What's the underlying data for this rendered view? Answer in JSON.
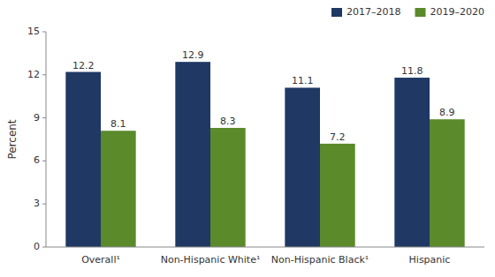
{
  "chart_data": {
    "type": "bar",
    "categories": [
      "Overall¹",
      "Non-Hispanic White¹",
      "Non-Hispanic Black¹",
      "Hispanic"
    ],
    "series": [
      {
        "name": "2017–2018",
        "color": "#1f3864",
        "values": [
          12.2,
          12.9,
          11.1,
          11.8
        ]
      },
      {
        "name": "2019–2020",
        "color": "#5a8a2a",
        "values": [
          8.1,
          8.3,
          7.2,
          8.9
        ]
      }
    ],
    "y_label": "Percent",
    "ylim": [
      0,
      15
    ],
    "yticks": [
      0,
      3,
      6,
      9,
      12,
      15
    ],
    "grid": false,
    "legend": "upper right",
    "data_labels": true
  }
}
